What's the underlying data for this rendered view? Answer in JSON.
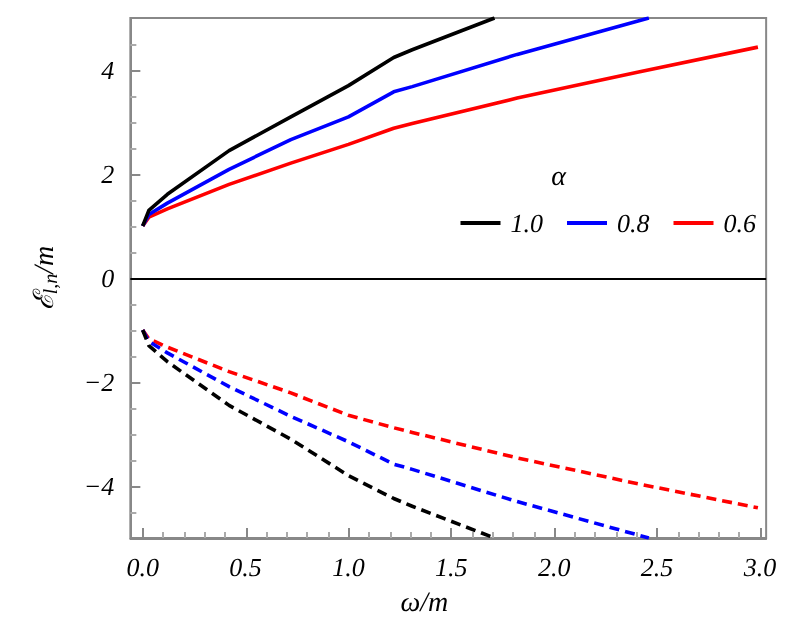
{
  "chart_data": {
    "type": "line",
    "xlabel": "ω/m",
    "ylabel": "ℰ$_{l,n}$/m",
    "legend_title": "α",
    "xlim": [
      -0.06,
      3.03
    ],
    "ylim": [
      -5,
      5
    ],
    "xticks": [
      {
        "value": 0,
        "label": "0.0"
      },
      {
        "value": 0.5,
        "label": "0.5"
      },
      {
        "value": 1,
        "label": "1.0"
      },
      {
        "value": 1.5,
        "label": "1.5"
      },
      {
        "value": 2,
        "label": "2.0"
      },
      {
        "value": 2.5,
        "label": "2.5"
      },
      {
        "value": 3,
        "label": "3.0"
      }
    ],
    "yticks": [
      -4,
      -2,
      0,
      2,
      4
    ],
    "grid": false,
    "legend": "right",
    "marker": "none",
    "ref_lines": [
      {
        "axis": "y",
        "value": 0,
        "color": "#000000"
      }
    ],
    "series": [
      {
        "name": "1.0",
        "color": "#000000",
        "line_style": "solid",
        "x": [
          0,
          0.03,
          0.12,
          0.42,
          0.72,
          1.0,
          1.22,
          1.31,
          1.71
        ],
        "values": [
          1,
          1.3,
          1.61,
          2.45,
          3.1,
          3.7,
          4.24,
          4.39,
          5
        ]
      },
      {
        "name": "0.8",
        "color": "#0000ff",
        "line_style": "solid",
        "x": [
          0,
          0.03,
          0.12,
          0.42,
          0.72,
          1.0,
          1.22,
          1.31,
          1.82,
          2.46
        ],
        "values": [
          1,
          1.22,
          1.44,
          2.09,
          2.66,
          3.1,
          3.58,
          3.68,
          4.3,
          5
        ]
      },
      {
        "name": "0.6",
        "color": "#ff0000",
        "line_style": "solid",
        "x": [
          0,
          0.03,
          0.12,
          0.42,
          0.72,
          1.0,
          1.22,
          1.31,
          1.82,
          2.41,
          2.99
        ],
        "values": [
          1,
          1.17,
          1.33,
          1.8,
          2.21,
          2.57,
          2.88,
          2.97,
          3.46,
          3.96,
          4.44
        ]
      },
      {
        "color": "#000000",
        "line_style": "dashed",
        "x": [
          0,
          0.03,
          0.12,
          0.42,
          0.72,
          1.0,
          1.22,
          1.31,
          1.71
        ],
        "values": [
          -1,
          -1.3,
          -1.61,
          -2.45,
          -3.1,
          -3.8,
          -4.24,
          -4.39,
          -5
        ]
      },
      {
        "color": "#0000ff",
        "line_style": "dashed",
        "x": [
          0,
          0.03,
          0.12,
          0.42,
          0.72,
          1.0,
          1.22,
          1.31,
          1.82,
          2.46
        ],
        "values": [
          -1,
          -1.22,
          -1.44,
          -2.09,
          -2.66,
          -3.15,
          -3.58,
          -3.68,
          -4.3,
          -5
        ]
      },
      {
        "color": "#ff0000",
        "line_style": "dashed",
        "x": [
          0,
          0.03,
          0.12,
          0.42,
          0.72,
          1.0,
          1.22,
          1.31,
          1.82,
          2.41,
          2.99
        ],
        "values": [
          -1,
          -1.17,
          -1.33,
          -1.8,
          -2.21,
          -2.64,
          -2.88,
          -2.97,
          -3.46,
          -3.96,
          -4.42
        ]
      }
    ]
  }
}
